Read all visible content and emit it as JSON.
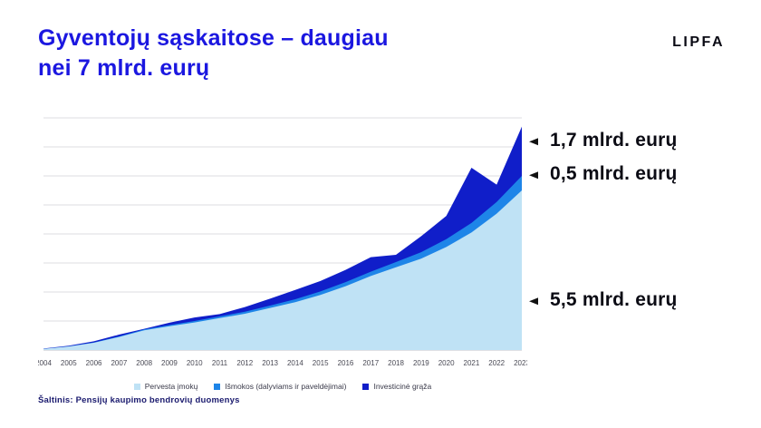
{
  "header": {
    "title_line1": "Gyventojų sąskaitose – daugiau",
    "title_line2": "nei 7 mlrd. eurų",
    "logo": "LIPFA"
  },
  "annotations": [
    {
      "label": "1,7 mlrd. eurų"
    },
    {
      "label": "0,5 mlrd. eurų"
    },
    {
      "label": "5,5 mlrd. eurų"
    }
  ],
  "footer": {
    "source": "Šaltinis: Pensijų kaupimo bendrovių duomenys"
  },
  "colors": {
    "title": "#1b17e0",
    "light_blue": "#bfe2f5",
    "mid_blue": "#1e85e8",
    "dark_blue": "#101ec9"
  },
  "chart_data": {
    "type": "area",
    "stacked": true,
    "title": "Gyventojų sąskaitose – daugiau nei 7 mlrd. eurų",
    "xlabel": "",
    "ylabel": "mlrd. eurų",
    "ylim": [
      0,
      8
    ],
    "grid": true,
    "legend_position": "bottom",
    "categories": [
      "2004",
      "2005",
      "2006",
      "2007",
      "2008",
      "2009",
      "2010",
      "2011",
      "2012",
      "2013",
      "2014",
      "2015",
      "2016",
      "2017",
      "2018",
      "2019",
      "2020",
      "2021",
      "2022",
      "2023"
    ],
    "series": [
      {
        "name": "Pervesta įmokų",
        "color": "#bfe2f5",
        "total_2023_label": "5,5 mlrd. eurų",
        "values": [
          0.04,
          0.12,
          0.25,
          0.45,
          0.68,
          0.82,
          0.95,
          1.1,
          1.25,
          1.45,
          1.65,
          1.9,
          2.2,
          2.55,
          2.85,
          3.15,
          3.55,
          4.05,
          4.7,
          5.5
        ]
      },
      {
        "name": "Išmokos (dalyviams ir paveldėjimai)",
        "color": "#1e85e8",
        "total_2023_label": "0,5 mlrd. eurų",
        "values": [
          0.0,
          0.01,
          0.01,
          0.02,
          0.03,
          0.04,
          0.05,
          0.06,
          0.07,
          0.08,
          0.1,
          0.12,
          0.14,
          0.15,
          0.18,
          0.22,
          0.27,
          0.33,
          0.4,
          0.5
        ]
      },
      {
        "name": "Investicinė grąža",
        "color": "#101ec9",
        "total_2023_label": "1,7 mlrd. eurų",
        "values": [
          0.01,
          0.02,
          0.04,
          0.06,
          0.02,
          0.08,
          0.12,
          0.08,
          0.16,
          0.24,
          0.32,
          0.36,
          0.42,
          0.5,
          0.25,
          0.55,
          0.8,
          1.9,
          0.6,
          1.7
        ]
      }
    ]
  }
}
